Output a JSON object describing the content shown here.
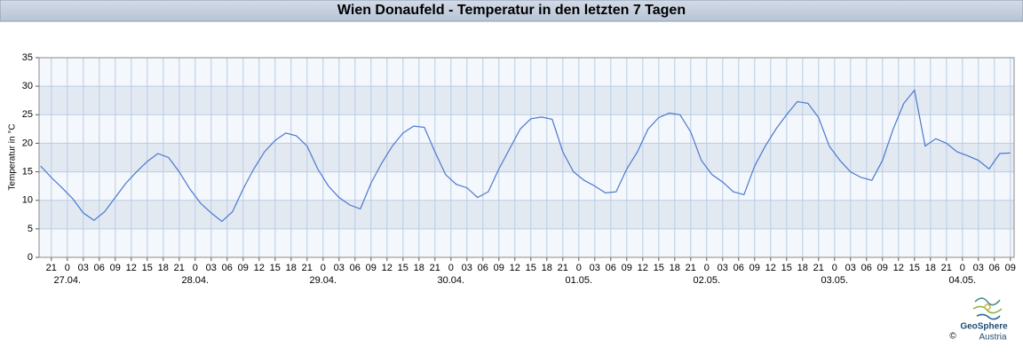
{
  "chart_data": {
    "type": "line",
    "title": "Wien Donaufeld - Temperatur in den letzten 7 Tagen",
    "y_label": "Temperatur in °C",
    "color": "#4a78d0",
    "grid": true,
    "x": [
      -5,
      -3,
      -1,
      1,
      3,
      5,
      7,
      9,
      11,
      13,
      15,
      17,
      19,
      21,
      23,
      25,
      27,
      29,
      31,
      33,
      35,
      37,
      39,
      41,
      43,
      45,
      47,
      49,
      51,
      53,
      55,
      57,
      59,
      61,
      63,
      65,
      67,
      69,
      71,
      73,
      75,
      77,
      79,
      81,
      83,
      85,
      87,
      89,
      91,
      93,
      95,
      97,
      99,
      101,
      103,
      105,
      107,
      109,
      111,
      113,
      115,
      117,
      119,
      121,
      123,
      125,
      127,
      129,
      131,
      133,
      135,
      137,
      139,
      141,
      143,
      145,
      147,
      149,
      151,
      153,
      155,
      157,
      159,
      161,
      163,
      165,
      167,
      169,
      171,
      173,
      175,
      177
    ],
    "values": [
      16,
      14,
      12.2,
      10.3,
      7.8,
      6.5,
      8,
      10.5,
      13,
      15,
      16.8,
      18.2,
      17.5,
      15,
      12,
      9.5,
      7.8,
      6.3,
      8,
      12,
      15.5,
      18.5,
      20.5,
      21.8,
      21.3,
      19.5,
      15.5,
      12.5,
      10.5,
      9.2,
      8.5,
      13,
      16.5,
      19.5,
      21.8,
      23,
      22.8,
      18.5,
      14.5,
      12.8,
      12.2,
      10.5,
      11.5,
      15.5,
      19,
      22.5,
      24.3,
      24.6,
      24.2,
      18.5,
      15,
      13.5,
      12.5,
      11.3,
      11.5,
      15.5,
      18.5,
      22.5,
      24.5,
      25.3,
      25,
      22,
      17,
      14.5,
      13.2,
      11.5,
      11,
      16,
      19.5,
      22.5,
      25,
      27.3,
      27,
      24.5,
      19.5,
      17,
      15,
      14,
      13.5,
      17,
      22.5,
      27,
      29.3,
      19.5,
      20.8,
      20,
      18.5,
      17.8,
      17,
      15.5,
      18.2,
      18.3
    ],
    "xlim": [
      -5.3,
      177.7
    ],
    "xticks": [
      {
        "value": -3,
        "label": "21"
      },
      {
        "value": 0,
        "label": "0"
      },
      {
        "value": 3,
        "label": "03"
      },
      {
        "value": 6,
        "label": "06"
      },
      {
        "value": 9,
        "label": "09"
      },
      {
        "value": 12,
        "label": "12"
      },
      {
        "value": 15,
        "label": "15"
      },
      {
        "value": 18,
        "label": "18"
      },
      {
        "value": 21,
        "label": "21"
      },
      {
        "value": 24,
        "label": "0"
      },
      {
        "value": 27,
        "label": "03"
      },
      {
        "value": 30,
        "label": "06"
      },
      {
        "value": 33,
        "label": "09"
      },
      {
        "value": 36,
        "label": "12"
      },
      {
        "value": 39,
        "label": "15"
      },
      {
        "value": 42,
        "label": "18"
      },
      {
        "value": 45,
        "label": "21"
      },
      {
        "value": 48,
        "label": "0"
      },
      {
        "value": 51,
        "label": "03"
      },
      {
        "value": 54,
        "label": "06"
      },
      {
        "value": 57,
        "label": "09"
      },
      {
        "value": 60,
        "label": "12"
      },
      {
        "value": 63,
        "label": "15"
      },
      {
        "value": 66,
        "label": "18"
      },
      {
        "value": 69,
        "label": "21"
      },
      {
        "value": 72,
        "label": "0"
      },
      {
        "value": 75,
        "label": "03"
      },
      {
        "value": 78,
        "label": "06"
      },
      {
        "value": 81,
        "label": "09"
      },
      {
        "value": 84,
        "label": "12"
      },
      {
        "value": 87,
        "label": "15"
      },
      {
        "value": 90,
        "label": "18"
      },
      {
        "value": 93,
        "label": "21"
      },
      {
        "value": 96,
        "label": "0"
      },
      {
        "value": 99,
        "label": "03"
      },
      {
        "value": 102,
        "label": "06"
      },
      {
        "value": 105,
        "label": "09"
      },
      {
        "value": 108,
        "label": "12"
      },
      {
        "value": 111,
        "label": "15"
      },
      {
        "value": 114,
        "label": "18"
      },
      {
        "value": 117,
        "label": "21"
      },
      {
        "value": 120,
        "label": "0"
      },
      {
        "value": 123,
        "label": "03"
      },
      {
        "value": 126,
        "label": "06"
      },
      {
        "value": 129,
        "label": "09"
      },
      {
        "value": 132,
        "label": "12"
      },
      {
        "value": 135,
        "label": "15"
      },
      {
        "value": 138,
        "label": "18"
      },
      {
        "value": 141,
        "label": "21"
      },
      {
        "value": 144,
        "label": "0"
      },
      {
        "value": 147,
        "label": "03"
      },
      {
        "value": 150,
        "label": "06"
      },
      {
        "value": 153,
        "label": "09"
      },
      {
        "value": 156,
        "label": "12"
      },
      {
        "value": 159,
        "label": "15"
      },
      {
        "value": 162,
        "label": "18"
      },
      {
        "value": 165,
        "label": "21"
      },
      {
        "value": 168,
        "label": "0"
      },
      {
        "value": 171,
        "label": "03"
      },
      {
        "value": 174,
        "label": "06"
      },
      {
        "value": 177,
        "label": "09"
      }
    ],
    "date_labels": [
      {
        "value": 0,
        "label": "27.04."
      },
      {
        "value": 24,
        "label": "28.04."
      },
      {
        "value": 48,
        "label": "29.04."
      },
      {
        "value": 72,
        "label": "30.04."
      },
      {
        "value": 96,
        "label": "01.05."
      },
      {
        "value": 120,
        "label": "02.05."
      },
      {
        "value": 144,
        "label": "03.05."
      },
      {
        "value": 168,
        "label": "04.05."
      }
    ],
    "ylim": [
      0,
      35
    ],
    "yticks": [
      0,
      5,
      10,
      15,
      20,
      25,
      30,
      35
    ]
  },
  "footer": {
    "logo_name": "GeoSphere",
    "logo_sub": "Austria",
    "copyright": "©"
  }
}
